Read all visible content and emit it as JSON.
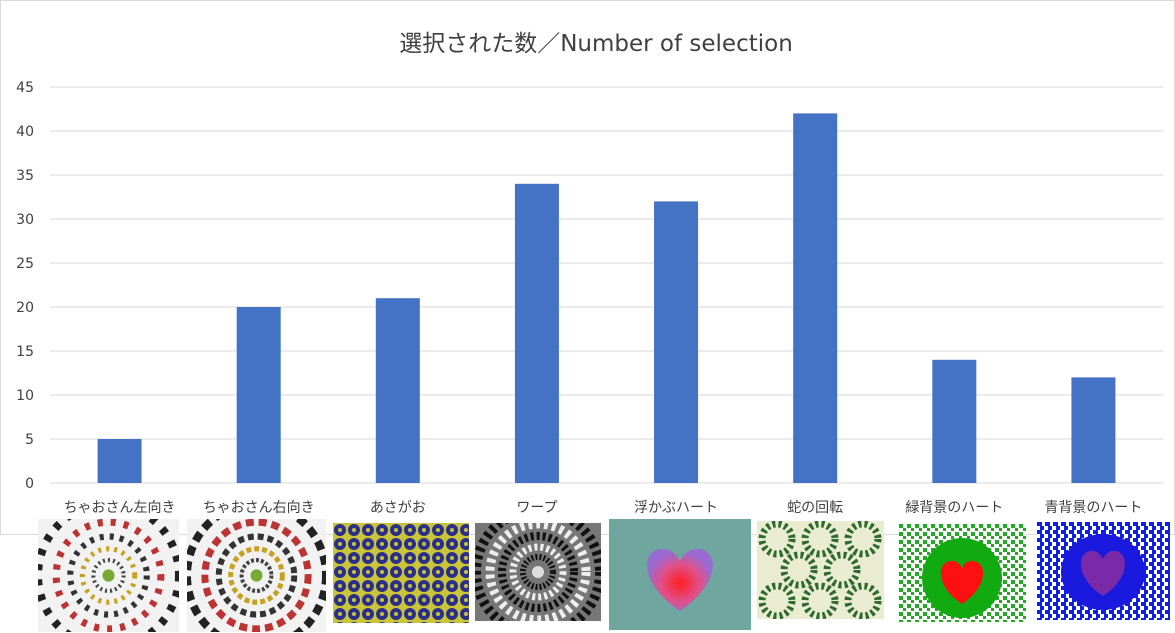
{
  "chart_data": {
    "type": "bar",
    "title": "選択された数／Number of selection",
    "xlabel": "",
    "ylabel": "",
    "categories": [
      "ちゃおさん左向き",
      "ちゃおさん右向き",
      "あさがお",
      "ワープ",
      "浮かぶハート",
      "蛇の回転",
      "緑背景のハート",
      "青背景のハート"
    ],
    "series": [
      {
        "values": [
          5,
          20,
          21,
          34,
          32,
          42,
          14,
          12
        ]
      }
    ],
    "ylim": [
      0,
      45
    ],
    "yticks": [
      0,
      5,
      10,
      15,
      20,
      25,
      30,
      35,
      40,
      45
    ],
    "grid": true,
    "legend": "none",
    "bar_color": "#4472C4",
    "grid_color": "#d9d9d9",
    "text_color": "#404040"
  },
  "thumbnails": [
    {
      "icon": "chao-left-illusion-icon"
    },
    {
      "icon": "chao-right-illusion-icon"
    },
    {
      "icon": "morning-glory-pattern-icon"
    },
    {
      "icon": "warp-spiral-icon"
    },
    {
      "icon": "floating-heart-icon"
    },
    {
      "icon": "rotating-snakes-icon"
    },
    {
      "icon": "green-background-heart-icon"
    },
    {
      "icon": "blue-background-heart-icon"
    }
  ]
}
